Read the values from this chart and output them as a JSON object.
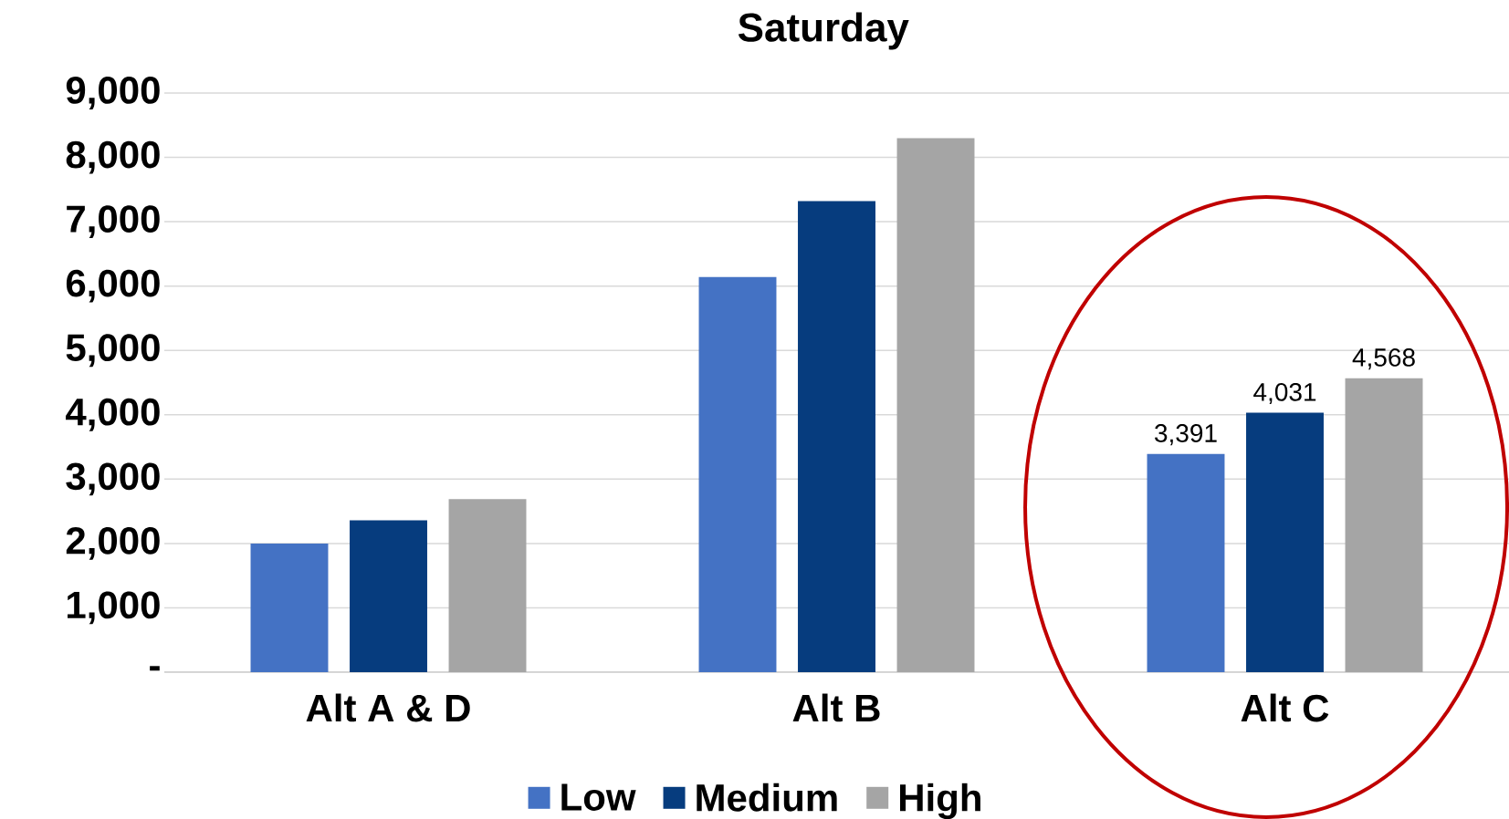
{
  "chart_data": {
    "type": "bar",
    "title": "Saturday",
    "categories": [
      "Alt A & D",
      "Alt B",
      "Alt C"
    ],
    "series": [
      {
        "name": "Low",
        "color": "#4472c4",
        "values": [
          2000,
          6140,
          3391
        ],
        "value_labels": [
          null,
          null,
          "3,391"
        ]
      },
      {
        "name": "Medium",
        "color": "#063c7e",
        "values": [
          2360,
          7320,
          4031
        ],
        "value_labels": [
          null,
          null,
          "4,031"
        ]
      },
      {
        "name": "High",
        "color": "#a5a5a5",
        "values": [
          2690,
          8300,
          4568
        ],
        "value_labels": [
          null,
          null,
          "4,568"
        ]
      }
    ],
    "ylim": [
      0,
      9000
    ],
    "yticks": [
      {
        "value": 0,
        "label": "-"
      },
      {
        "value": 1000,
        "label": "1,000"
      },
      {
        "value": 2000,
        "label": "2,000"
      },
      {
        "value": 3000,
        "label": "3,000"
      },
      {
        "value": 4000,
        "label": "4,000"
      },
      {
        "value": 5000,
        "label": "5,000"
      },
      {
        "value": 6000,
        "label": "6,000"
      },
      {
        "value": 7000,
        "label": "7,000"
      },
      {
        "value": 8000,
        "label": "8,000"
      },
      {
        "value": 9000,
        "label": "9,000"
      }
    ],
    "grid": "y",
    "legend": "bottom"
  }
}
